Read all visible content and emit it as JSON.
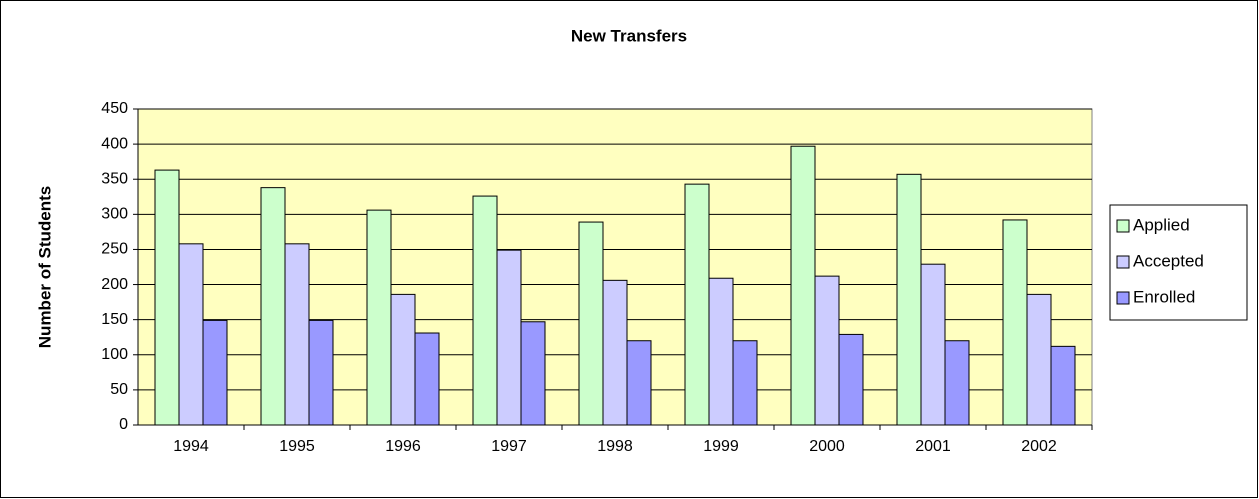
{
  "chart_data": {
    "type": "bar",
    "title": "New Transfers",
    "y_label": "Number of Students",
    "categories": [
      "1994",
      "1995",
      "1996",
      "1997",
      "1998",
      "1999",
      "2000",
      "2001",
      "2002"
    ],
    "series": [
      {
        "name": "Applied",
        "color": "#ccffcc",
        "values": [
          363,
          338,
          306,
          326,
          289,
          343,
          397,
          357,
          292
        ]
      },
      {
        "name": "Accepted",
        "color": "#ccccff",
        "values": [
          258,
          258,
          186,
          249,
          206,
          209,
          212,
          229,
          186
        ]
      },
      {
        "name": "Enrolled",
        "color": "#9999ff",
        "values": [
          149,
          149,
          131,
          147,
          120,
          120,
          129,
          120,
          112
        ]
      }
    ],
    "ylim": [
      0,
      450
    ],
    "yticks": [
      0,
      50,
      100,
      150,
      200,
      250,
      300,
      350,
      400,
      450
    ],
    "grid": true,
    "legend": "right"
  }
}
